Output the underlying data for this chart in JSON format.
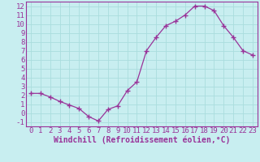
{
  "x": [
    0,
    1,
    2,
    3,
    4,
    5,
    6,
    7,
    8,
    9,
    10,
    11,
    12,
    13,
    14,
    15,
    16,
    17,
    18,
    19,
    20,
    21,
    22,
    23
  ],
  "y": [
    2.2,
    2.2,
    1.8,
    1.3,
    0.9,
    0.5,
    -0.4,
    -0.9,
    0.4,
    0.8,
    2.5,
    3.5,
    7.0,
    8.5,
    9.8,
    10.3,
    11.0,
    12.0,
    12.0,
    11.5,
    9.8,
    8.5,
    7.0,
    6.5
  ],
  "line_color": "#993399",
  "marker": "+",
  "bg_color": "#c8eef0",
  "grid_color": "#aadddd",
  "xlabel": "Windchill (Refroidissement éolien,°C)",
  "xlabel_color": "#993399",
  "tick_color": "#993399",
  "spine_color": "#993399",
  "ylim": [
    -1.5,
    12.5
  ],
  "xlim": [
    -0.5,
    23.5
  ],
  "yticks": [
    -1,
    0,
    1,
    2,
    3,
    4,
    5,
    6,
    7,
    8,
    9,
    10,
    11,
    12
  ],
  "xticks": [
    0,
    1,
    2,
    3,
    4,
    5,
    6,
    7,
    8,
    9,
    10,
    11,
    12,
    13,
    14,
    15,
    16,
    17,
    18,
    19,
    20,
    21,
    22,
    23
  ],
  "font_size": 6.5,
  "xlabel_font_size": 7,
  "marker_size": 4,
  "line_width": 0.9
}
